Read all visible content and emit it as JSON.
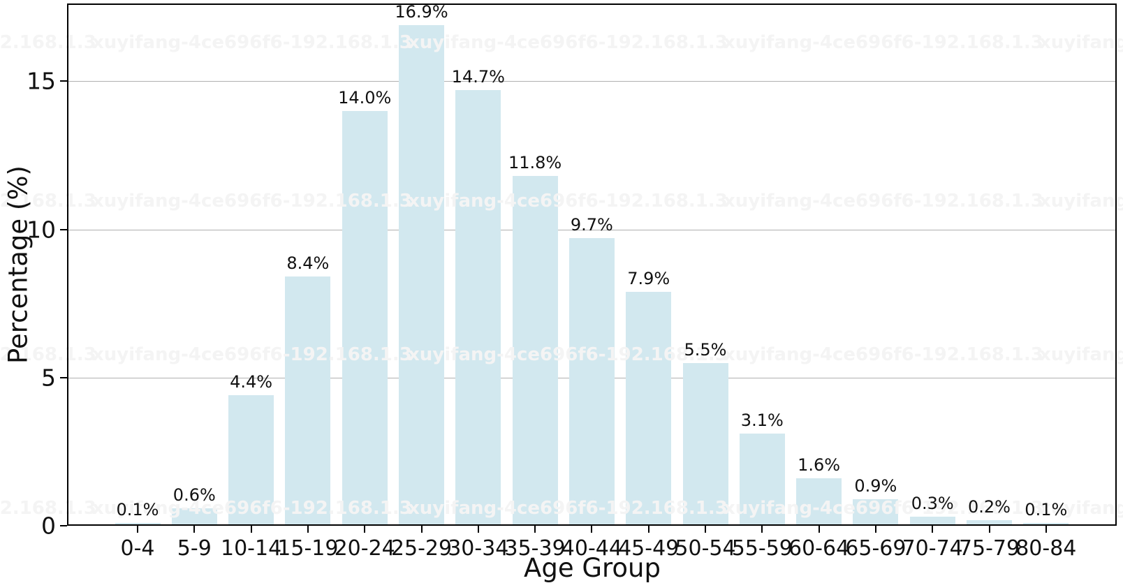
{
  "chart_data": {
    "type": "bar",
    "title": "",
    "xlabel": "Age Group",
    "ylabel": "Percentage (%)",
    "categories": [
      "0-4",
      "5-9",
      "10-14",
      "15-19",
      "20-24",
      "25-29",
      "30-34",
      "35-39",
      "40-44",
      "45-49",
      "50-54",
      "55-59",
      "60-64",
      "65-69",
      "70-74",
      "75-79",
      "80-84"
    ],
    "values": [
      0.1,
      0.6,
      4.4,
      8.4,
      14.0,
      16.9,
      14.7,
      11.8,
      9.7,
      7.9,
      5.5,
      3.1,
      1.6,
      0.9,
      0.3,
      0.2,
      0.1
    ],
    "bar_labels": [
      "0.1%",
      "0.6%",
      "4.4%",
      "8.4%",
      "14.0%",
      "16.9%",
      "14.7%",
      "11.8%",
      "9.7%",
      "7.9%",
      "5.5%",
      "3.1%",
      "1.6%",
      "0.9%",
      "0.3%",
      "0.2%",
      "0.1%"
    ],
    "yticks": [
      {
        "value": 0,
        "label": "0"
      },
      {
        "value": 5,
        "label": "5"
      },
      {
        "value": 10,
        "label": "10"
      },
      {
        "value": 15,
        "label": "15"
      }
    ],
    "ylim": [
      0,
      17.6
    ],
    "grid": "horizontal",
    "legend": "none",
    "colors": {
      "bar": "#d2e8ef",
      "gridline": "#b0b0b0",
      "axis": "#000000",
      "text": "#111111"
    }
  },
  "watermark": {
    "text": "xuyifang-4ce696f6-192.168.1.3",
    "color": "#f4f4f4",
    "rows": 4
  }
}
